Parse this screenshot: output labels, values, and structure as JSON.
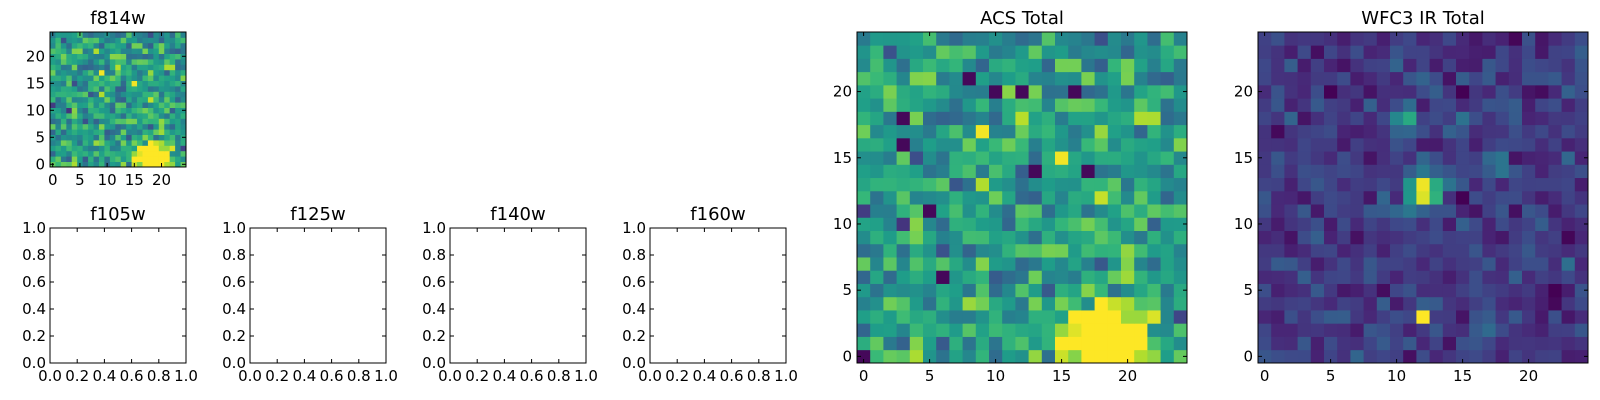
{
  "colormap": {
    "name": "viridis",
    "stops": [
      "#440154",
      "#482777",
      "#3e4989",
      "#31688e",
      "#26828e",
      "#1f9e89",
      "#35b779",
      "#6ece58",
      "#b5de2b",
      "#fde725"
    ]
  },
  "chart_data": [
    {
      "key": "f814w",
      "type": "heatmap",
      "title": "f814w",
      "grid_size": [
        25,
        25
      ],
      "x_ticks": [
        "0",
        "5",
        "10",
        "15",
        "20"
      ],
      "y_ticks": [
        "0",
        "5",
        "10",
        "15",
        "20"
      ],
      "noise_mean": 0.55,
      "noise_std": 0.14,
      "features": [
        {
          "x": 18.3,
          "y": 1.2,
          "sigma": 2.0,
          "amplitude": 1.1
        }
      ]
    },
    {
      "key": "f105w",
      "type": "heatmap",
      "title": "f105w",
      "empty": true,
      "x_ticks": [
        "0.0",
        "0.2",
        "0.4",
        "0.6",
        "0.8",
        "1.0"
      ],
      "y_ticks": [
        "0.0",
        "0.2",
        "0.4",
        "0.6",
        "0.8",
        "1.0"
      ]
    },
    {
      "key": "f125w",
      "type": "heatmap",
      "title": "f125w",
      "empty": true,
      "x_ticks": [
        "0.0",
        "0.2",
        "0.4",
        "0.6",
        "0.8",
        "1.0"
      ],
      "y_ticks": [
        "0.0",
        "0.2",
        "0.4",
        "0.6",
        "0.8",
        "1.0"
      ]
    },
    {
      "key": "f140w",
      "type": "heatmap",
      "title": "f140w",
      "empty": true,
      "x_ticks": [
        "0.0",
        "0.2",
        "0.4",
        "0.6",
        "0.8",
        "1.0"
      ],
      "y_ticks": [
        "0.0",
        "0.2",
        "0.4",
        "0.6",
        "0.8",
        "1.0"
      ]
    },
    {
      "key": "f160w",
      "type": "heatmap",
      "title": "f160w",
      "empty": true,
      "x_ticks": [
        "0.0",
        "0.2",
        "0.4",
        "0.6",
        "0.8",
        "1.0"
      ],
      "y_ticks": [
        "0.0",
        "0.2",
        "0.4",
        "0.6",
        "0.8",
        "1.0"
      ]
    },
    {
      "key": "acs_total",
      "type": "heatmap",
      "title": "ACS Total",
      "grid_size": [
        25,
        25
      ],
      "x_ticks": [
        "0",
        "5",
        "10",
        "15",
        "20"
      ],
      "y_ticks": [
        "0",
        "5",
        "10",
        "15",
        "20"
      ],
      "noise_mean": 0.55,
      "noise_std": 0.14,
      "features": [
        {
          "x": 18.3,
          "y": 1.2,
          "sigma": 2.0,
          "amplitude": 1.1
        }
      ],
      "dark_pixels": [
        [
          8,
          21
        ],
        [
          10,
          20
        ],
        [
          12,
          20
        ],
        [
          16,
          20
        ],
        [
          3,
          18
        ],
        [
          3,
          16
        ],
        [
          13,
          14
        ],
        [
          17,
          14
        ],
        [
          5,
          11
        ],
        [
          6,
          6
        ],
        [
          0,
          0
        ]
      ]
    },
    {
      "key": "wfc3_ir_total",
      "type": "heatmap",
      "title": "WFC3 IR Total",
      "grid_size": [
        25,
        25
      ],
      "x_ticks": [
        "0",
        "5",
        "10",
        "15",
        "20"
      ],
      "y_ticks": [
        "0",
        "5",
        "10",
        "15",
        "20"
      ],
      "noise_mean": 0.17,
      "noise_std": 0.07,
      "features": [
        {
          "x": 12,
          "y": 12.5,
          "sigma": 0.9,
          "amplitude": 0.9
        },
        {
          "x": 10.8,
          "y": 17.7,
          "sigma": 0.55,
          "amplitude": 0.6
        },
        {
          "x": 12,
          "y": 3,
          "sigma": 0.4,
          "amplitude": 0.9
        },
        {
          "x": 17.6,
          "y": 14.7,
          "sigma": 0.55,
          "amplitude": 0.35
        }
      ]
    }
  ]
}
